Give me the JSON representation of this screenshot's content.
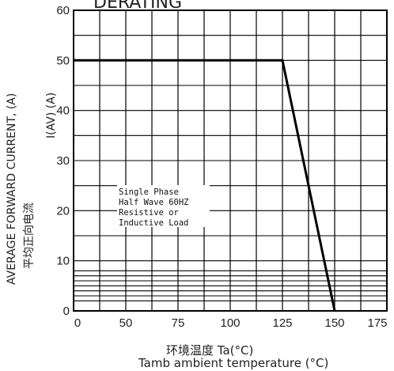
{
  "chart_data": {
    "type": "line",
    "title": "DERATING",
    "ylabel_en": "AVERAGE FORWARD CURRENT, (A)",
    "ylabel_cn": "平均正向电流",
    "ylabel_sym": "I(AV)  (A)",
    "xlabel_cn": "环境温度  Ta(°C)",
    "xlabel_en": "Tamb  ambient temperature (°C)",
    "annotation_lines": [
      "Single Phase",
      "Half Wave 60HZ",
      "Resistive or",
      "Inductive Load"
    ],
    "x_ticks": [
      "0",
      "50",
      "75",
      "100",
      "125",
      "150",
      "175"
    ],
    "y_ticks": [
      "0",
      "10",
      "20",
      "30",
      "40",
      "50",
      "60"
    ],
    "xlim": [
      25,
      175
    ],
    "ylim": [
      0,
      60
    ],
    "grid": true,
    "series": [
      {
        "x": [
          25,
          125,
          150
        ],
        "y": [
          50,
          50,
          0
        ]
      }
    ]
  }
}
